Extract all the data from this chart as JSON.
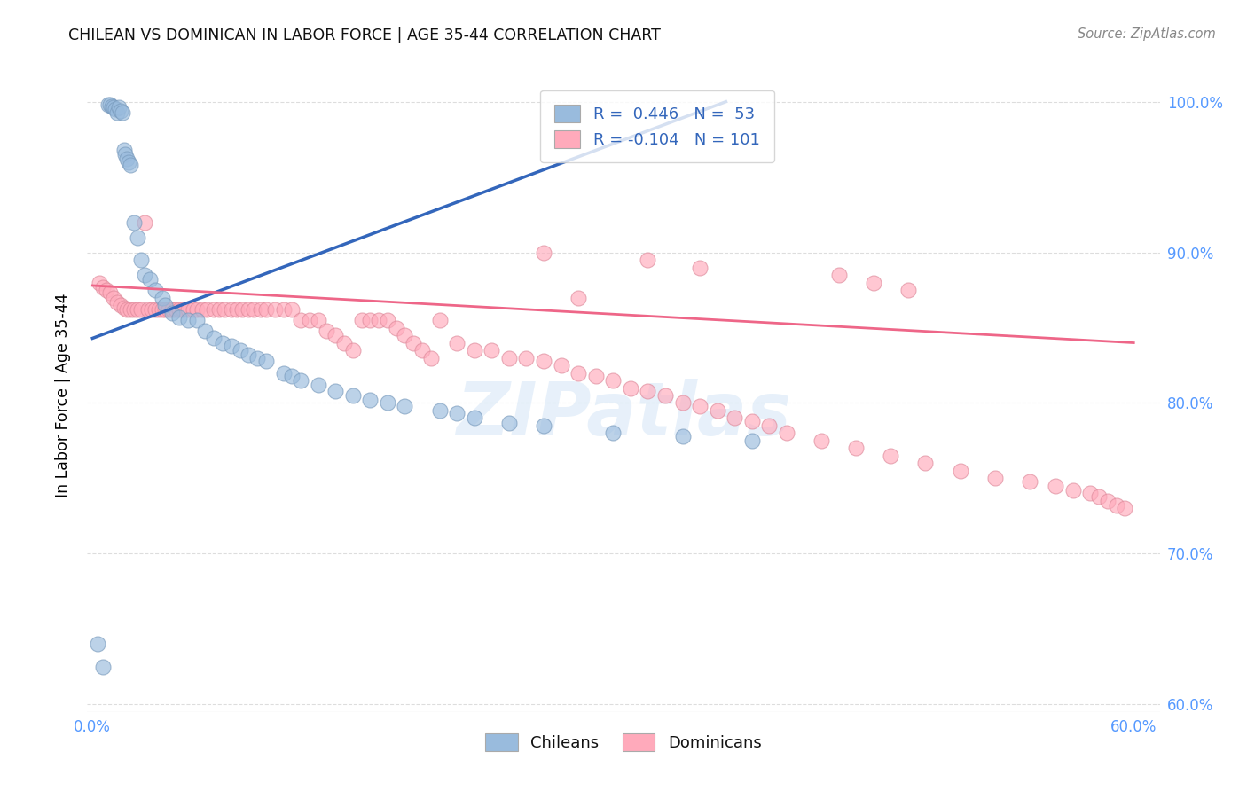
{
  "title": "CHILEAN VS DOMINICAN IN LABOR FORCE | AGE 35-44 CORRELATION CHART",
  "source": "Source: ZipAtlas.com",
  "ylabel": "In Labor Force | Age 35-44",
  "watermark": "ZIPatlas",
  "r_chilean": "R =",
  "r_val_chilean": "0.446",
  "n_chilean": "N =",
  "n_val_chilean": "53",
  "r_dominican": "R =",
  "r_val_dominican": "-0.104",
  "n_dominican": "N =",
  "n_val_dominican": "101",
  "xlim": [
    -0.003,
    0.615
  ],
  "ylim": [
    0.595,
    1.015
  ],
  "xtick_positions": [
    0.0,
    0.1,
    0.2,
    0.3,
    0.4,
    0.5,
    0.6
  ],
  "xtick_labels": [
    "0.0%",
    "",
    "",
    "",
    "",
    "",
    "60.0%"
  ],
  "ytick_positions": [
    0.6,
    0.7,
    0.8,
    0.9,
    1.0
  ],
  "ytick_labels": [
    "60.0%",
    "70.0%",
    "80.0%",
    "90.0%",
    "100.0%"
  ],
  "blue_fill": "#99BBDD",
  "blue_edge": "#7799BB",
  "pink_fill": "#FFAABB",
  "pink_edge": "#DD8899",
  "trend_blue": "#3366BB",
  "trend_pink": "#EE6688",
  "tick_color": "#5599FF",
  "grid_color": "#DDDDDD",
  "chilean_x": [
    0.003,
    0.006,
    0.009,
    0.01,
    0.011,
    0.012,
    0.013,
    0.014,
    0.015,
    0.016,
    0.017,
    0.018,
    0.019,
    0.02,
    0.021,
    0.022,
    0.024,
    0.026,
    0.028,
    0.03,
    0.033,
    0.036,
    0.04,
    0.042,
    0.046,
    0.05,
    0.055,
    0.06,
    0.065,
    0.07,
    0.075,
    0.08,
    0.085,
    0.09,
    0.095,
    0.1,
    0.11,
    0.115,
    0.12,
    0.13,
    0.14,
    0.15,
    0.16,
    0.17,
    0.18,
    0.2,
    0.21,
    0.22,
    0.24,
    0.26,
    0.3,
    0.34,
    0.38
  ],
  "chilean_y": [
    0.64,
    0.625,
    0.998,
    0.998,
    0.997,
    0.996,
    0.995,
    0.993,
    0.996,
    0.994,
    0.993,
    0.968,
    0.965,
    0.962,
    0.96,
    0.958,
    0.92,
    0.91,
    0.895,
    0.885,
    0.882,
    0.875,
    0.87,
    0.865,
    0.86,
    0.857,
    0.855,
    0.855,
    0.848,
    0.843,
    0.84,
    0.838,
    0.835,
    0.832,
    0.83,
    0.828,
    0.82,
    0.818,
    0.815,
    0.812,
    0.808,
    0.805,
    0.802,
    0.8,
    0.798,
    0.795,
    0.793,
    0.79,
    0.787,
    0.785,
    0.78,
    0.778,
    0.775
  ],
  "dominican_x": [
    0.004,
    0.006,
    0.008,
    0.01,
    0.012,
    0.014,
    0.016,
    0.018,
    0.02,
    0.022,
    0.024,
    0.026,
    0.028,
    0.03,
    0.032,
    0.034,
    0.036,
    0.038,
    0.04,
    0.042,
    0.044,
    0.046,
    0.048,
    0.05,
    0.052,
    0.055,
    0.058,
    0.06,
    0.063,
    0.066,
    0.07,
    0.073,
    0.076,
    0.08,
    0.083,
    0.086,
    0.09,
    0.093,
    0.097,
    0.1,
    0.105,
    0.11,
    0.115,
    0.12,
    0.125,
    0.13,
    0.135,
    0.14,
    0.145,
    0.15,
    0.155,
    0.16,
    0.165,
    0.17,
    0.175,
    0.18,
    0.185,
    0.19,
    0.195,
    0.2,
    0.21,
    0.22,
    0.23,
    0.24,
    0.25,
    0.26,
    0.27,
    0.28,
    0.29,
    0.3,
    0.31,
    0.32,
    0.33,
    0.34,
    0.35,
    0.36,
    0.37,
    0.38,
    0.39,
    0.4,
    0.42,
    0.44,
    0.46,
    0.48,
    0.5,
    0.52,
    0.54,
    0.555,
    0.565,
    0.575,
    0.58,
    0.585,
    0.59,
    0.595,
    0.26,
    0.32,
    0.35,
    0.43,
    0.45,
    0.47,
    0.28
  ],
  "dominican_y": [
    0.88,
    0.877,
    0.875,
    0.873,
    0.87,
    0.867,
    0.865,
    0.863,
    0.862,
    0.862,
    0.862,
    0.862,
    0.862,
    0.92,
    0.862,
    0.862,
    0.862,
    0.862,
    0.862,
    0.862,
    0.862,
    0.862,
    0.862,
    0.862,
    0.862,
    0.862,
    0.862,
    0.862,
    0.862,
    0.862,
    0.862,
    0.862,
    0.862,
    0.862,
    0.862,
    0.862,
    0.862,
    0.862,
    0.862,
    0.862,
    0.862,
    0.862,
    0.862,
    0.855,
    0.855,
    0.855,
    0.848,
    0.845,
    0.84,
    0.835,
    0.855,
    0.855,
    0.855,
    0.855,
    0.85,
    0.845,
    0.84,
    0.835,
    0.83,
    0.855,
    0.84,
    0.835,
    0.835,
    0.83,
    0.83,
    0.828,
    0.825,
    0.82,
    0.818,
    0.815,
    0.81,
    0.808,
    0.805,
    0.8,
    0.798,
    0.795,
    0.79,
    0.788,
    0.785,
    0.78,
    0.775,
    0.77,
    0.765,
    0.76,
    0.755,
    0.75,
    0.748,
    0.745,
    0.742,
    0.74,
    0.738,
    0.735,
    0.732,
    0.73,
    0.9,
    0.895,
    0.89,
    0.885,
    0.88,
    0.875,
    0.87
  ],
  "chilean_trend": [
    0.0,
    0.365,
    0.843,
    1.0
  ],
  "dominican_trend": [
    0.0,
    0.6,
    0.878,
    0.84
  ]
}
